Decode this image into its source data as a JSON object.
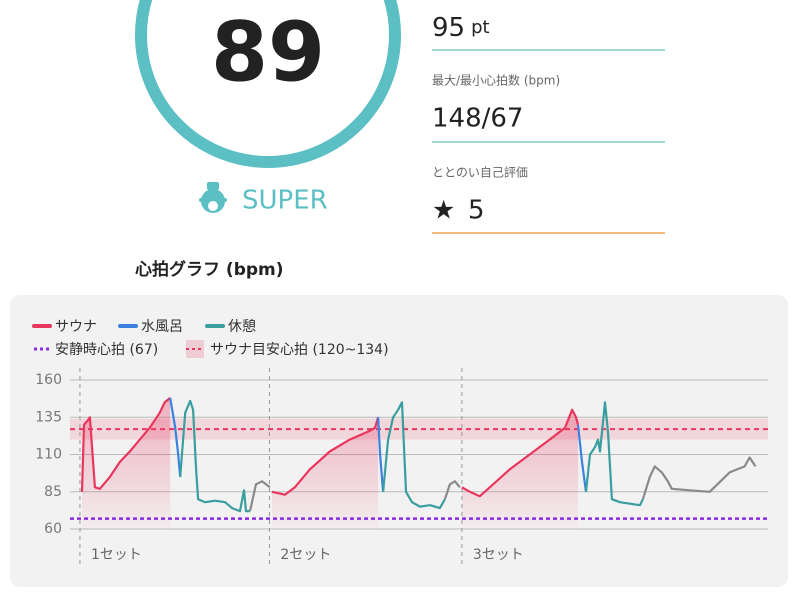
{
  "score": 89,
  "rank": "SUPER",
  "points": {
    "value": 95,
    "unit": "pt"
  },
  "heart_rate": {
    "label": "最大/最小心拍数 (bpm)",
    "value": "148/67"
  },
  "self_rating": {
    "label": "ととのい自己評価",
    "value": 5
  },
  "chart_data": {
    "type": "line",
    "title": "心拍グラフ (bpm)",
    "xlim": [
      0,
      140
    ],
    "ylim": [
      60,
      160
    ],
    "yticks": [
      60,
      85,
      110,
      135,
      160
    ],
    "grid": true,
    "series": [
      {
        "name": "サウナ",
        "color": "#e8365d",
        "fill": true,
        "x": [
          2.4,
          2.8,
          3.6,
          4.0,
          5.0,
          6.0,
          8.0,
          10.0,
          12.0,
          14.0,
          16.0,
          18.0,
          19.0,
          20.1,
          null,
          40.5,
          43.1,
          45.1,
          48.1,
          52.1,
          56.1,
          60.2,
          61.2,
          61.8,
          null,
          78.6,
          80.2,
          82.2,
          84.2,
          88.2,
          92.2,
          96.2,
          99.3,
          100.7,
          101.5,
          101.9
        ],
        "values": [
          85,
          130,
          133,
          135,
          88,
          87,
          95,
          105,
          112,
          120,
          128,
          138,
          145,
          148,
          null,
          85,
          83,
          88,
          100,
          112,
          120,
          126,
          128,
          135,
          null,
          88,
          85,
          82,
          88,
          100,
          110,
          120,
          128,
          140,
          135,
          130
        ]
      },
      {
        "name": "水風呂",
        "color": "#3b82e0",
        "x": [
          20.1,
          20.5,
          21.1,
          21.7,
          22.1,
          null,
          61.8,
          62.2,
          62.8,
          null,
          101.9,
          102.7,
          103.5
        ],
        "values": [
          148,
          140,
          128,
          110,
          95,
          null,
          135,
          110,
          85,
          null,
          130,
          105,
          85
        ]
      },
      {
        "name": "休憩",
        "color": "#3a9e9e",
        "x": [
          22.1,
          23.1,
          24.1,
          24.7,
          25.3,
          25.7,
          27.1,
          29.1,
          31.1,
          32.5,
          34.1,
          34.9,
          35.3,
          36.1,
          null,
          62.8,
          63.8,
          64.8,
          65.8,
          66.6,
          67.4,
          68.6,
          70.2,
          72.2,
          74.2,
          75.2,
          null,
          103.5,
          104.3,
          105.3,
          105.9,
          106.3,
          107.3,
          107.9,
          108.7,
          110.3,
          112.3,
          114.3,
          114.9
        ],
        "values": [
          95,
          138,
          146,
          140,
          100,
          80,
          78,
          79,
          78,
          74,
          72,
          86,
          72,
          72,
          null,
          85,
          120,
          135,
          140,
          145,
          85,
          78,
          75,
          76,
          74,
          80,
          null,
          85,
          110,
          115,
          120,
          112,
          145,
          125,
          80,
          78,
          77,
          76,
          80
        ]
      },
      {
        "color": "#8a8a8a",
        "x": [
          36.1,
          37.3,
          38.5,
          40.1,
          null,
          75.2,
          76.2,
          77.2,
          78.2,
          null,
          114.9,
          116.3,
          117.3,
          118.7,
          119.9,
          120.7,
          124.3,
          128.3,
          132.3,
          135.3,
          136.3,
          137.5
        ],
        "values": [
          72,
          90,
          92,
          88,
          null,
          80,
          90,
          92,
          88,
          null,
          80,
          95,
          102,
          98,
          92,
          87,
          86,
          85,
          98,
          102,
          108,
          102
        ]
      }
    ],
    "resting_line": {
      "label": "安静時心拍 (67)",
      "value": 67,
      "color": "#8a2be2"
    },
    "target_band": {
      "label": "サウナ目安心拍 (120~134)",
      "range": [
        120,
        134
      ],
      "line": 127,
      "color": "#e8365d"
    },
    "sets": [
      {
        "x": 2,
        "label": "1セット"
      },
      {
        "x": 40,
        "label": "2セット"
      },
      {
        "x": 78.6,
        "label": "3セット"
      }
    ]
  }
}
